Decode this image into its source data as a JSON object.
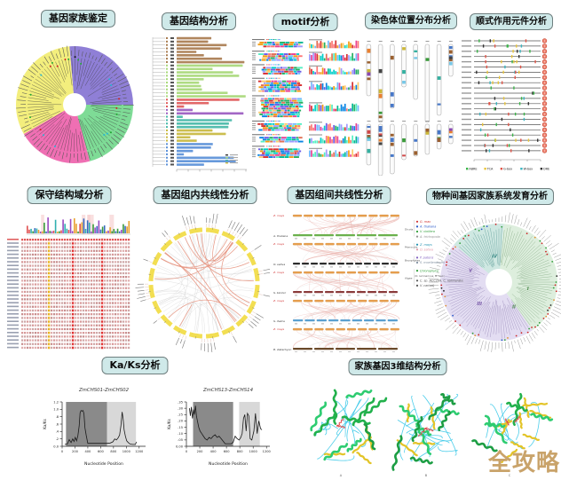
{
  "watermark": "全攻略",
  "panels": {
    "family": {
      "title": "基因家族鉴定"
    },
    "structure": {
      "title": "基因结构分析"
    },
    "motif": {
      "title": "motif分析"
    },
    "chromosome": {
      "title": "染色体位置分布分析"
    },
    "cis": {
      "title": "顺式作用元件分析",
      "legend": [
        {
          "label": "ABRE",
          "color": "#3cb54a"
        },
        {
          "label": "TCA",
          "color": "#e8c53a"
        },
        {
          "label": "G-box",
          "color": "#e05548"
        },
        {
          "label": "W-box",
          "color": "#3ab5c0"
        },
        {
          "label": "DRE",
          "color": "#333333"
        }
      ]
    },
    "domain": {
      "title": "保守结构域分析"
    },
    "intra": {
      "title": "基因组内共线性分析"
    },
    "inter": {
      "title": "基因组间共线性分析",
      "query_label": "Z. mays",
      "subjects": [
        "A. thaliana",
        "O. sativa",
        "S. bicolor",
        "S. italica",
        "B. distachyon"
      ]
    },
    "phylo": {
      "title": "物种间基因家族系统发育分析",
      "groups": [
        {
          "name": "Dicots",
          "items": [
            {
              "label": "G. max",
              "color": "#d03030"
            },
            {
              "label": "A. thaliana",
              "color": "#2858c8"
            },
            {
              "label": "V. vinifera",
              "color": "#2f9e38"
            },
            {
              "label": "A. trichopoda",
              "color": "#909090"
            }
          ]
        },
        {
          "name": "Monocots",
          "items": [
            {
              "label": "Z. mays",
              "color": "#2090b0"
            },
            {
              "label": "O. sativa",
              "color": "#e090a0"
            }
          ]
        },
        {
          "name": "Bryophytes",
          "items": [
            {
              "label": "P. patens",
              "color": "#8060c0"
            },
            {
              "label": "S. moellendorffii",
              "color": "#8090a0"
            }
          ]
        },
        {
          "name": "Algae",
          "items": [
            {
              "label": "Chlorophyta",
              "color": "#2f9e38"
            },
            {
              "label": "(O. lucimarinus, O. tauri,",
              "color": "#555555"
            },
            {
              "label": "C. sp. RCC299, C. reinhardtii,",
              "color": "#555555"
            },
            {
              "label": "V. carteri)",
              "color": "#555555"
            }
          ]
        }
      ],
      "clade_labels": [
        "I",
        "II",
        "III",
        "IV",
        "V"
      ]
    },
    "kaks": {
      "title": "Ka/Ks分析"
    },
    "structure3d": {
      "title": "家族基因3维结构分析",
      "model_labels": [
        "A",
        "B",
        "C"
      ]
    }
  },
  "chart_data": [
    {
      "type": "line",
      "title": "ZmCHS01-ZmCHS02",
      "xlabel": "Nucleotide Position",
      "ylabel": "Ka/Ks",
      "xlim": [
        0,
        1300
      ],
      "ylim": [
        0,
        1.2
      ],
      "xticks": [
        0,
        200,
        400,
        600,
        800,
        1000,
        1200
      ],
      "yticks": [
        0,
        0.2,
        0.4,
        0.6,
        0.8,
        1.0,
        1.2
      ],
      "ytick_labels": [
        "0.0",
        ".2",
        ".4",
        ".6",
        ".8",
        "1.0",
        "1.2"
      ],
      "shaded_regions": [
        {
          "x0": 60,
          "x1": 700,
          "color": "#8a8a8a"
        },
        {
          "x0": 700,
          "x1": 1150,
          "color": "#d8d8d8"
        }
      ],
      "x": [
        40,
        80,
        110,
        140,
        165,
        185,
        205,
        225,
        245,
        265,
        280,
        295,
        310,
        325,
        340,
        355,
        375,
        400,
        430,
        470,
        520,
        580,
        640,
        700,
        750,
        790,
        820,
        845,
        870,
        895,
        915,
        935,
        950,
        965,
        985,
        1005,
        1030,
        1060,
        1100,
        1140,
        1160
      ],
      "y": [
        0.05,
        0.06,
        0.18,
        0.1,
        0.2,
        0.13,
        0.24,
        0.15,
        0.28,
        0.55,
        0.9,
        0.97,
        0.95,
        0.97,
        0.88,
        0.5,
        0.3,
        0.08,
        0.08,
        0.08,
        0.08,
        0.08,
        0.08,
        0.08,
        0.09,
        0.12,
        0.2,
        0.17,
        0.22,
        0.3,
        0.55,
        0.93,
        0.75,
        0.45,
        0.28,
        0.15,
        0.1,
        0.06,
        0.05,
        0.05,
        0.12
      ]
    },
    {
      "type": "line",
      "title": "ZmCHS13-ZmCHS14",
      "xlabel": "Nucleotide Position",
      "ylabel": "Ka/Ks",
      "xlim": [
        0,
        1250
      ],
      "ylim": [
        0,
        0.35
      ],
      "xticks": [
        0,
        200,
        400,
        600,
        800,
        1000,
        1200
      ],
      "yticks": [
        0,
        0.05,
        0.1,
        0.15,
        0.2,
        0.25,
        0.3,
        0.35
      ],
      "ytick_labels": [
        "0.00",
        ".05",
        ".10",
        ".15",
        ".20",
        ".25",
        ".30",
        ".35"
      ],
      "shaded_regions": [
        {
          "x0": 100,
          "x1": 700,
          "color": "#8a8a8a"
        },
        {
          "x0": 790,
          "x1": 1100,
          "color": "#d8d8d8"
        }
      ],
      "x": [
        45,
        60,
        75,
        90,
        105,
        120,
        135,
        150,
        165,
        185,
        205,
        230,
        255,
        280,
        310,
        340,
        370,
        400,
        430,
        460,
        490,
        520,
        550,
        580,
        610,
        640,
        670,
        700,
        730,
        760,
        790,
        815,
        835,
        855,
        875,
        895,
        915,
        935,
        955,
        980,
        1010,
        1035,
        1060,
        1085,
        1110,
        1130
      ],
      "y": [
        0.3,
        0.24,
        0.31,
        0.22,
        0.29,
        0.25,
        0.32,
        0.24,
        0.2,
        0.15,
        0.12,
        0.1,
        0.08,
        0.06,
        0.05,
        0.07,
        0.06,
        0.08,
        0.09,
        0.07,
        0.08,
        0.06,
        0.04,
        0.02,
        0.02,
        0.02,
        0.02,
        0.03,
        0.08,
        0.06,
        0.05,
        0.07,
        0.1,
        0.22,
        0.25,
        0.12,
        0.26,
        0.24,
        0.06,
        0.05,
        0.12,
        0.26,
        0.1,
        0.2,
        0.14,
        0.13
      ]
    }
  ]
}
